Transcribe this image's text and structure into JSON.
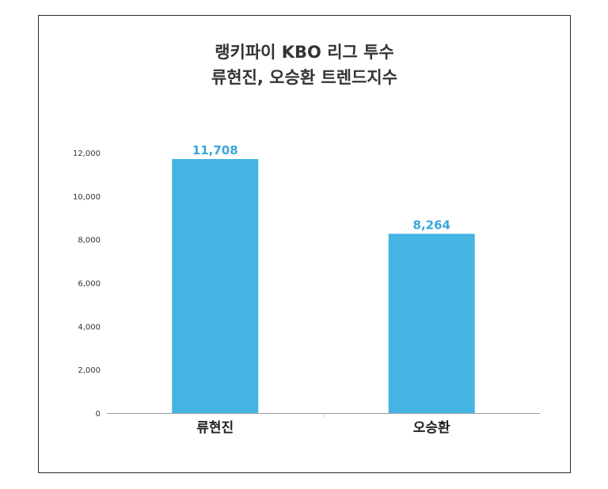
{
  "chart_data": {
    "type": "bar",
    "title_lines": [
      "랭키파이 KBO 리그 투수",
      "류현진, 오승환 트렌드지수"
    ],
    "categories": [
      "류현진",
      "오승환"
    ],
    "values": [
      11708,
      8264
    ],
    "data_labels": [
      "11,708",
      "8,264"
    ],
    "y_ticks": [
      0,
      2000,
      4000,
      6000,
      8000,
      10000,
      12000
    ],
    "y_tick_labels": [
      "0",
      "2,000",
      "4,000",
      "6,000",
      "8,000",
      "10,000",
      "12,000"
    ],
    "ylim": [
      0,
      12000
    ],
    "xlabel": "",
    "ylabel": "",
    "grid": false,
    "legend": "none",
    "bar_color": "#45b4e3",
    "label_color": "#3aa6d8"
  }
}
